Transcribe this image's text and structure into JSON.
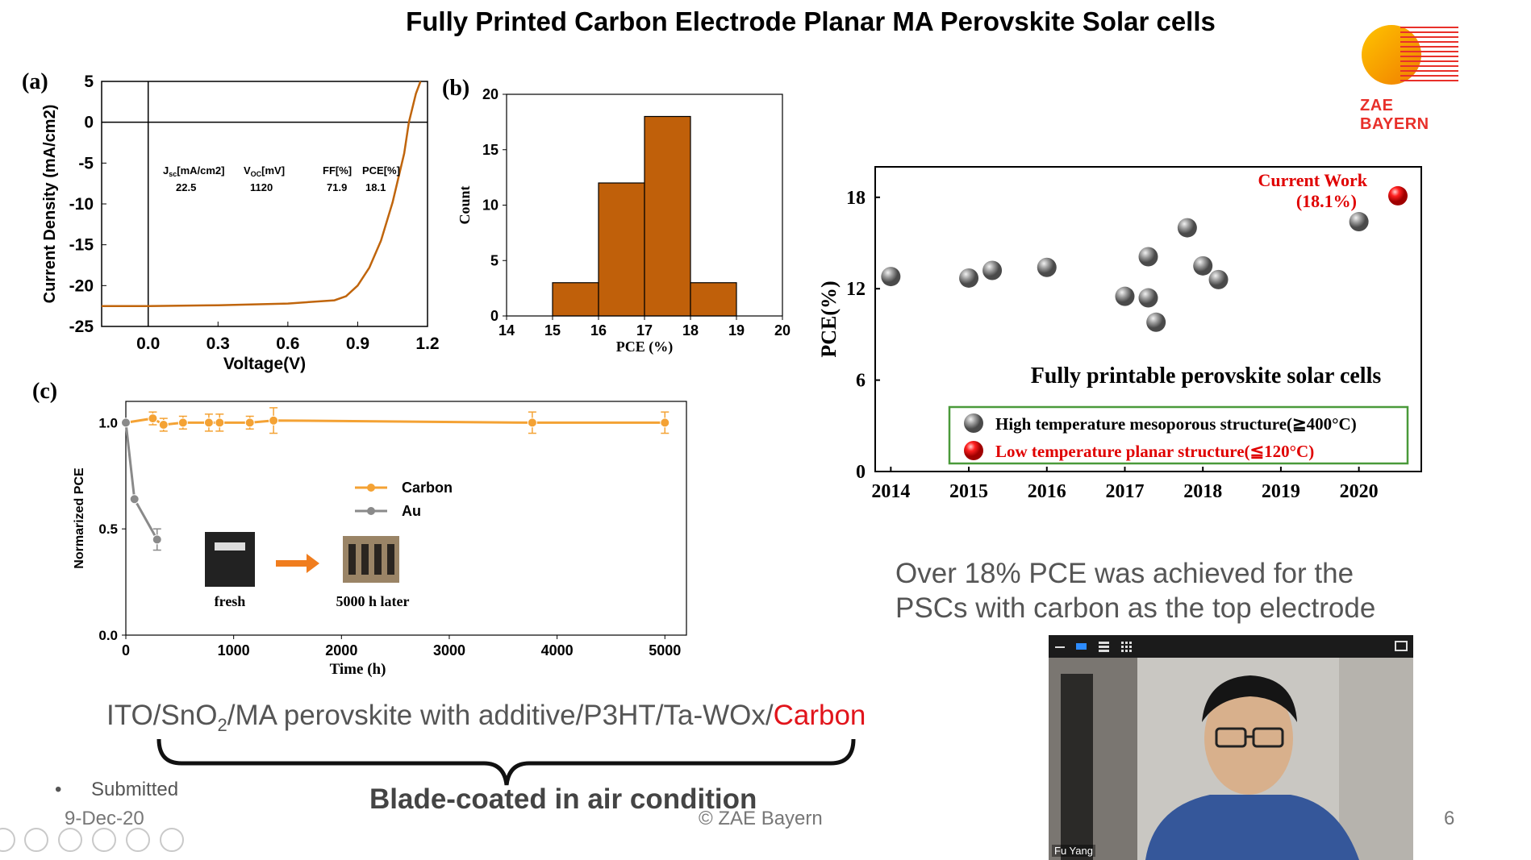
{
  "slide": {
    "title": "Fully Printed Carbon Electrode Planar MA Perovskite Solar cells",
    "logo_text": "ZAE BAYERN",
    "panel_labels": {
      "a": "(a)",
      "b": "(b)",
      "c": "(c)"
    },
    "conclusion": [
      "Over 18% PCE was achieved for the",
      "PSCs with carbon as the top electrode"
    ],
    "formula": {
      "part1": "ITO/SnO",
      "sub": "2",
      "part2": "/MA perovskite with additive/P3HT/Ta-WOx/",
      "carbon": "Carbon"
    },
    "brace_caption": "Blade-coated in air condition",
    "bullet": "Submitted",
    "date": "9-Dec-20",
    "copyright": "© ZAE Bayern",
    "page_number": "6",
    "video": {
      "participant_name": "Fu Yang"
    }
  },
  "chart_data": [
    {
      "type": "line",
      "panel": "(a)",
      "xlabel": "Voltage(V)",
      "ylabel": "Current Density (mA/cm2)",
      "xlim": [
        -0.2,
        1.2
      ],
      "ylim": [
        -25,
        5
      ],
      "xticks": [
        "0.0",
        "0.3",
        "0.6",
        "0.9",
        "1.2"
      ],
      "yticks": [
        "5",
        "0",
        "-5",
        "-10",
        "-15",
        "-20",
        "-25"
      ],
      "x": [
        -0.2,
        0.0,
        0.3,
        0.6,
        0.8,
        0.85,
        0.9,
        0.95,
        1.0,
        1.05,
        1.1,
        1.12,
        1.15,
        1.17
      ],
      "y": [
        -22.5,
        -22.5,
        -22.4,
        -22.2,
        -21.8,
        -21.3,
        -20.0,
        -17.8,
        -14.5,
        -9.8,
        -3.8,
        0.0,
        3.5,
        5.0
      ],
      "table": {
        "headers": {
          "jsc": "J",
          "jsc_sub": "sc",
          "jsc_unit": "[mA/cm2]",
          "voc": "V",
          "voc_sub": "OC",
          "voc_unit": "[mV]",
          "ff": "FF[%]",
          "pce": "PCE[%]"
        },
        "values": {
          "jsc": "22.5",
          "voc": "1120",
          "ff": "71.9",
          "pce": "18.1"
        }
      },
      "color": "#c0650c"
    },
    {
      "type": "bar",
      "panel": "(b)",
      "xlabel": "PCE (%)",
      "ylabel": "Count",
      "bins": [
        [
          15,
          16
        ],
        [
          16,
          17
        ],
        [
          17,
          18
        ],
        [
          18,
          19
        ]
      ],
      "values": [
        3,
        12,
        18,
        3
      ],
      "xlim": [
        14,
        20
      ],
      "ylim": [
        0,
        20
      ],
      "xticks": [
        "14",
        "15",
        "16",
        "17",
        "18",
        "19",
        "20"
      ],
      "yticks": [
        "0",
        "5",
        "10",
        "15",
        "20"
      ],
      "color": "#c0600a"
    },
    {
      "type": "line",
      "panel": "(c)",
      "xlabel": "Time (h)",
      "ylabel": "Normarized PCE",
      "xlim": [
        0,
        5200
      ],
      "ylim": [
        0,
        1.1
      ],
      "xticks": [
        "0",
        "1000",
        "2000",
        "3000",
        "4000",
        "5000"
      ],
      "yticks": [
        "0.0",
        "0.5",
        "1.0"
      ],
      "series": [
        {
          "name": "Carbon",
          "color": "#f4a234",
          "x": [
            0,
            250,
            350,
            530,
            770,
            870,
            1150,
            1370,
            3770,
            5000
          ],
          "y": [
            1.0,
            1.02,
            0.99,
            1.0,
            1.0,
            1.0,
            1.0,
            1.01,
            1.0,
            1.0
          ],
          "err": [
            0.01,
            0.03,
            0.03,
            0.03,
            0.04,
            0.04,
            0.03,
            0.06,
            0.05,
            0.05
          ]
        },
        {
          "name": "Au",
          "color": "#8a8a8a",
          "x": [
            0,
            80,
            290
          ],
          "y": [
            1.0,
            0.64,
            0.45
          ],
          "err": [
            0.0,
            0.0,
            0.05
          ]
        }
      ],
      "inset_labels": {
        "fresh": "fresh",
        "later": "5000 h later"
      }
    },
    {
      "type": "scatter",
      "panel": "right",
      "ylabel": "PCE(%)",
      "xlim": [
        2013.8,
        2020.8
      ],
      "ylim": [
        0,
        20
      ],
      "xticks": [
        "2014",
        "2015",
        "2016",
        "2017",
        "2018",
        "2019",
        "2020"
      ],
      "yticks": [
        "0",
        "6",
        "12",
        "18"
      ],
      "caption": "Fully printable perovskite solar cells",
      "annotation": [
        "Current Work",
        "(18.1%)"
      ],
      "series": [
        {
          "name": "High temperature mesoporous structure(≧400°C)",
          "color": "#808080",
          "x": [
            2014.0,
            2015.0,
            2015.3,
            2016.0,
            2017.0,
            2017.3,
            2017.4,
            2017.3,
            2017.8,
            2018.0,
            2018.2,
            2020.0
          ],
          "y": [
            12.8,
            12.7,
            13.2,
            13.4,
            11.5,
            11.4,
            9.8,
            14.1,
            16.0,
            13.5,
            12.6,
            16.4
          ]
        },
        {
          "name": "Low temperature planar structure(≦120°C)",
          "color": "#e00000",
          "x": [
            2020.5
          ],
          "y": [
            18.1
          ]
        }
      ]
    }
  ]
}
